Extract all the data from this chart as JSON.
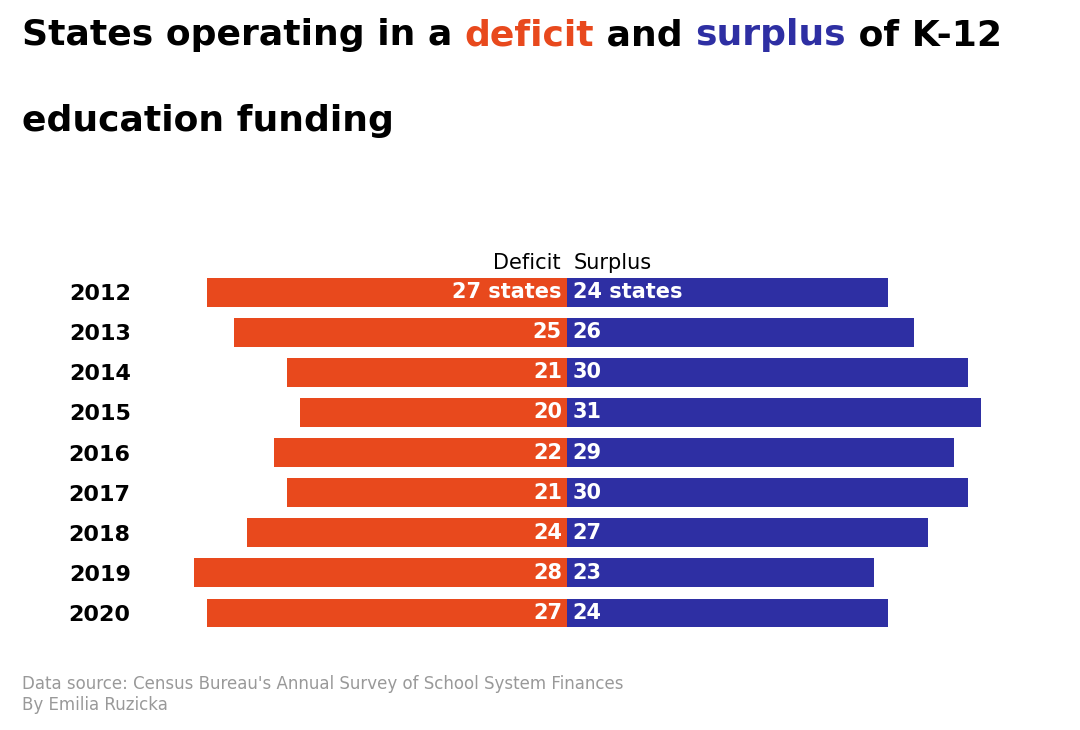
{
  "years": [
    "2012",
    "2013",
    "2014",
    "2015",
    "2016",
    "2017",
    "2018",
    "2019",
    "2020"
  ],
  "deficit": [
    27,
    25,
    21,
    20,
    22,
    21,
    24,
    28,
    27
  ],
  "surplus": [
    24,
    26,
    30,
    31,
    29,
    30,
    27,
    23,
    24
  ],
  "deficit_color": "#E8491D",
  "surplus_color": "#2E2FA3",
  "bar_height": 0.72,
  "deficit_label": "Deficit",
  "surplus_label": "Surplus",
  "source_text": "Data source: Census Bureau's Annual Survey of School System Finances\nBy Emilia Ruzicka",
  "source_color": "#999999",
  "label_fontsize": 15,
  "year_fontsize": 16,
  "title_fontsize": 26,
  "header_fontsize": 15,
  "source_fontsize": 12,
  "text_color_white": "#FFFFFF",
  "text_color_black": "#000000",
  "deficit_title_color": "#E8491D",
  "surplus_title_color": "#2E2FA3",
  "background_color": "#FFFFFF",
  "xlim_left": -32,
  "xlim_right": 36
}
